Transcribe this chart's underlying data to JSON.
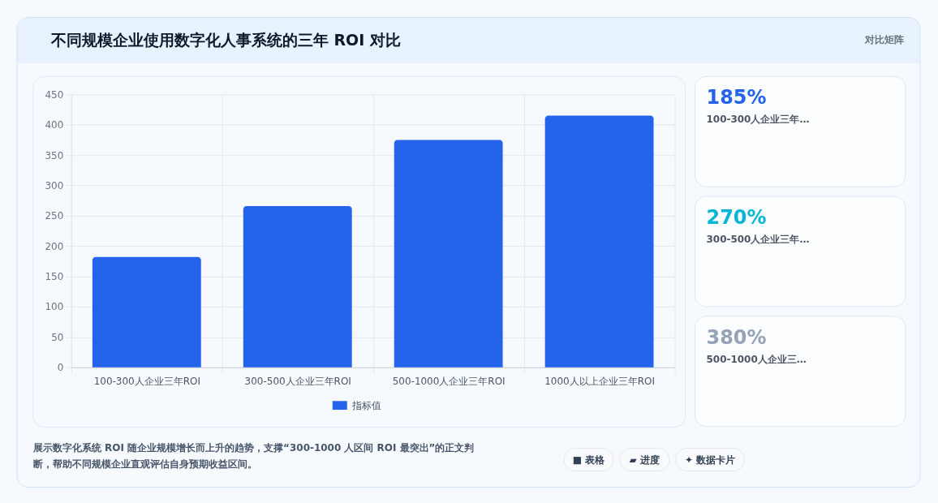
{
  "chart_data": [
    {
      "type": "bar",
      "title": "不同规模企业使用数字化人事系统的三年 ROI 对比",
      "categories": [
        "100-300人企业三年ROI",
        "300-500人企业三年ROI",
        "500-1000人企业三年ROI",
        "1000人以上企业三年ROI"
      ],
      "series": [
        {
          "name": "指标值",
          "color": "#2563eb",
          "values": [
            182,
            266,
            375,
            415
          ]
        }
      ],
      "ylim": [
        0,
        450
      ],
      "yticks": [
        0,
        50,
        100,
        150,
        200,
        250,
        300,
        350,
        400,
        450
      ],
      "grid": true,
      "legend": "bottom",
      "annotations": [
        "对比矩阵",
        "展示数字化系统 ROI 随企业规模增长而上升的趋势，支撑“300-1000 人区间 ROI 最突出”的正文判断，帮助不同规模企业直观评估自身预期收益区间。",
        "■ 表格",
        "▰ 进度",
        "✦ 数据卡片"
      ]
    },
    {
      "type": "other",
      "annotations": [
        "185%",
        "100-300人企业三年…",
        "270%",
        "300-500人企业三年…",
        "380%",
        "500-1000人企业三…"
      ]
    }
  ]
}
